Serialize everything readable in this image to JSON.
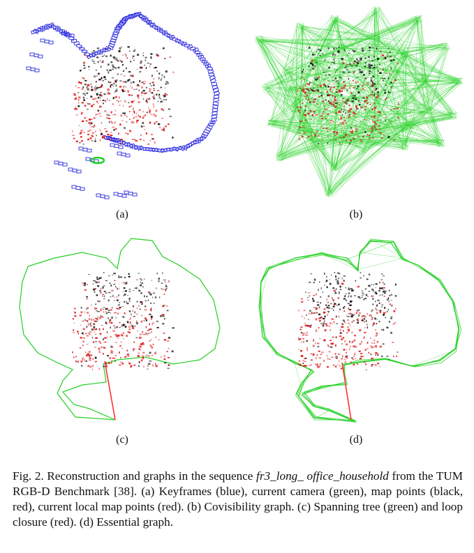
{
  "panels": [
    {
      "label": "(a)"
    },
    {
      "label": "(b)"
    },
    {
      "label": "(c)"
    },
    {
      "label": "(d)"
    }
  ],
  "caption": {
    "fig_label": "Fig. 2.",
    "text_before_math": "Reconstruction and graphs in the sequence",
    "math_line1": "fr3_long_",
    "math_line2": "office_household",
    "text_after_math": "from the TUM RGB-D Benchmark [38]. (a) Keyframes (blue), current camera (green), map points (black, red), current local map points (red). (b) Covisibility graph. (c) Spanning tree (green) and loop closure (red). (d) Essential graph."
  },
  "colors": {
    "keyframes": "#2a2adf",
    "graph_green": "#22d022",
    "map_black": "#111111",
    "map_red": "#e01818",
    "loop_red": "#ff3030"
  }
}
